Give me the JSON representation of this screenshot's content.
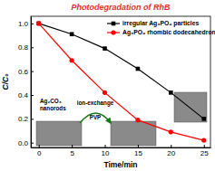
{
  "chart_data": {
    "type": "line",
    "title": "Photodegradation of RhB",
    "x_label": "Time/min",
    "y_label": "C/C₀",
    "x": [
      0,
      5,
      10,
      15,
      20,
      25
    ],
    "series": [
      {
        "name": "irregular Ag₃PO₄ particles",
        "color": "#000000",
        "marker": "square",
        "values": [
          1.0,
          0.91,
          0.79,
          0.62,
          0.42,
          0.2
        ]
      },
      {
        "name": "Ag₃PO₄ rhombic dodecahedrons",
        "color": "#ff0000",
        "marker": "circle",
        "values": [
          1.0,
          0.69,
          0.42,
          0.19,
          0.09,
          0.02
        ]
      }
    ],
    "xlim": [
      -1.2,
      26
    ],
    "ylim": [
      -0.04,
      1.06
    ],
    "xticks": [
      0,
      5,
      10,
      15,
      20,
      25
    ],
    "yticks": [
      {
        "value": 0,
        "label": "0.0"
      },
      {
        "value": 0.2,
        "label": "0.2"
      },
      {
        "value": 0.4,
        "label": "0.4"
      },
      {
        "value": 0.6,
        "label": "0.6"
      },
      {
        "value": 0.8,
        "label": "0.8"
      },
      {
        "value": 1.0,
        "label": "1.0"
      }
    ],
    "legend": "upper right",
    "annotations": [
      "Ag₂CO₃",
      "nanorods",
      "ion-exchange",
      "PVP"
    ]
  }
}
